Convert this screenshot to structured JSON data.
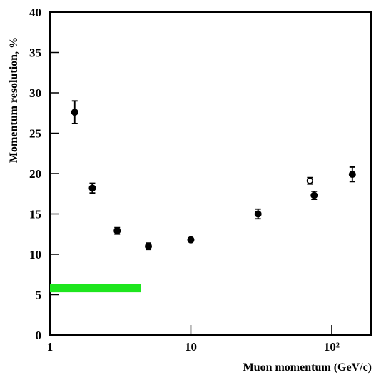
{
  "chart_data": {
    "type": "scatter",
    "x_label": "Muon momentum  (GeV/c)",
    "y_label": "Momentum resolution, %",
    "xlog": true,
    "xlim": [
      1,
      190
    ],
    "xticks": [
      1,
      10,
      {
        "value": 100,
        "label": "10²"
      }
    ],
    "ylim": [
      0,
      40
    ],
    "yticks": [
      0,
      5,
      10,
      15,
      20,
      25,
      30,
      35,
      40
    ],
    "series": [
      {
        "marker": "filled",
        "color": "#000000",
        "x": [
          1.5,
          2,
          3,
          5,
          10,
          30,
          75,
          140
        ],
        "values": [
          27.6,
          18.2,
          12.9,
          11.0,
          11.8,
          15.0,
          17.3,
          19.9
        ],
        "errors": [
          1.4,
          0.6,
          0.4,
          0.4,
          0.2,
          0.6,
          0.5,
          0.9
        ]
      },
      {
        "marker": "open",
        "color": "#000000",
        "x": [
          70
        ],
        "values": [
          19.1
        ],
        "errors": [
          0.4
        ]
      }
    ],
    "band": {
      "x": [
        1,
        4.4
      ],
      "y": [
        5.3,
        6.3
      ],
      "color": "#1ee61e"
    }
  }
}
